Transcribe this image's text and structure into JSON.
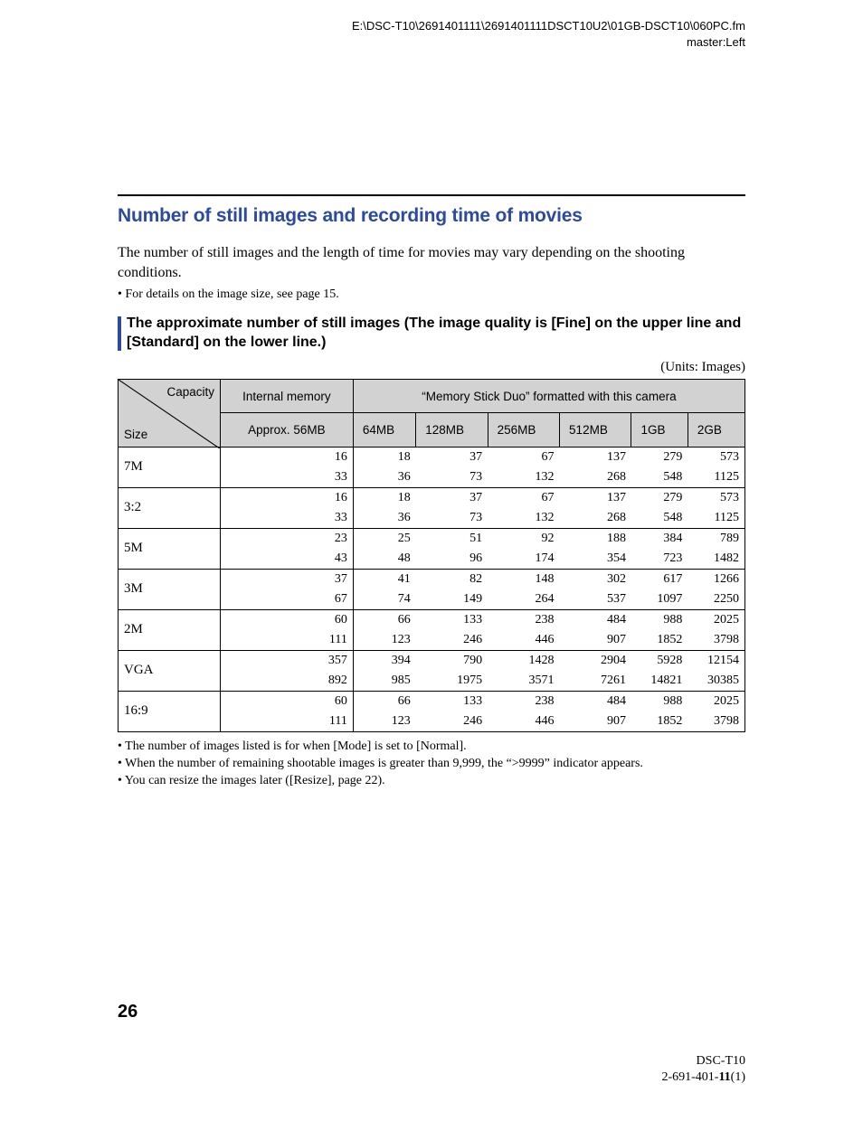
{
  "header": {
    "path_line1": "E:\\DSC-T10\\2691401111\\2691401111DSCT10U2\\01GB-DSCT10\\060PC.fm",
    "path_line2": "master:Left"
  },
  "title": "Number of still images and recording time of movies",
  "intro": "The number of still images and the length of time for movies may vary depending on the shooting conditions.",
  "intro_bullet": "• For details on the image size, see page 15.",
  "subhead": "The approximate number of still images (The image quality is [Fine] on the upper line and [Standard] on the lower line.)",
  "units_label": "(Units: Images)",
  "table": {
    "corner_capacity": "Capacity",
    "corner_size": "Size",
    "internal_header": "Internal memory",
    "msduo_header": "“Memory Stick Duo” formatted with this camera",
    "internal_sub": "Approx. 56MB",
    "cap_cols": [
      "64MB",
      "128MB",
      "256MB",
      "512MB",
      "1GB",
      "2GB"
    ],
    "sizes": [
      "7M",
      "3:2",
      "5M",
      "3M",
      "2M",
      "VGA",
      "16:9"
    ],
    "rows": [
      {
        "size": "7M",
        "fine": [
          16,
          18,
          37,
          67,
          137,
          279,
          573
        ],
        "std": [
          33,
          36,
          73,
          132,
          268,
          548,
          1125
        ]
      },
      {
        "size": "3:2",
        "fine": [
          16,
          18,
          37,
          67,
          137,
          279,
          573
        ],
        "std": [
          33,
          36,
          73,
          132,
          268,
          548,
          1125
        ]
      },
      {
        "size": "5M",
        "fine": [
          23,
          25,
          51,
          92,
          188,
          384,
          789
        ],
        "std": [
          43,
          48,
          96,
          174,
          354,
          723,
          1482
        ]
      },
      {
        "size": "3M",
        "fine": [
          37,
          41,
          82,
          148,
          302,
          617,
          1266
        ],
        "std": [
          67,
          74,
          149,
          264,
          537,
          1097,
          2250
        ]
      },
      {
        "size": "2M",
        "fine": [
          60,
          66,
          133,
          238,
          484,
          988,
          2025
        ],
        "std": [
          111,
          123,
          246,
          446,
          907,
          1852,
          3798
        ]
      },
      {
        "size": "VGA",
        "fine": [
          357,
          394,
          790,
          1428,
          2904,
          5928,
          12154
        ],
        "std": [
          892,
          985,
          1975,
          3571,
          7261,
          14821,
          30385
        ]
      },
      {
        "size": "16:9",
        "fine": [
          60,
          66,
          133,
          238,
          484,
          988,
          2025
        ],
        "std": [
          111,
          123,
          246,
          446,
          907,
          1852,
          3798
        ]
      }
    ]
  },
  "notes": [
    "• The number of images listed is for when [Mode] is set to [Normal].",
    "• When the number of remaining shootable images is greater than 9,999, the “>9999” indicator appears.",
    "• You can resize the images later ([Resize], page 22)."
  ],
  "page_number": "26",
  "footer": {
    "model": "DSC-T10",
    "doc_prefix": "2-691-401-",
    "doc_bold": "11",
    "doc_suffix": "(1)"
  },
  "colors": {
    "accent": "#2b4aa0",
    "header_bg": "#d2d2d2",
    "text": "#000000",
    "page_bg": "#ffffff"
  }
}
